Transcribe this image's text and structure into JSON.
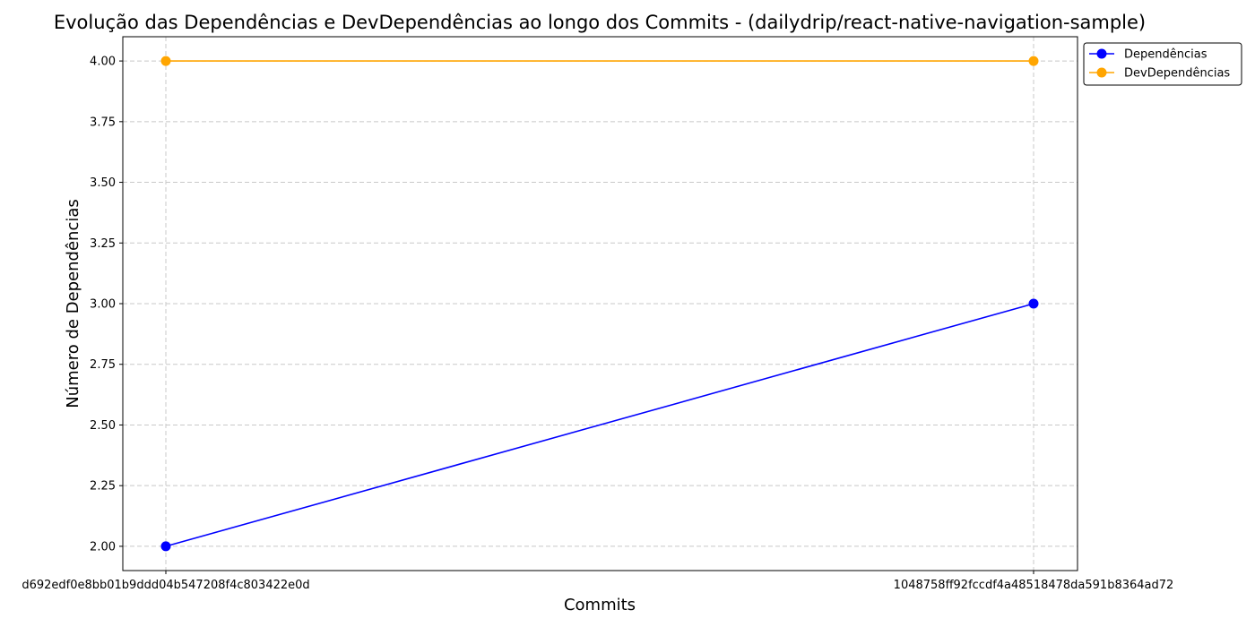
{
  "chart_data": {
    "type": "line",
    "title": "Evolução das Dependências e DevDependências ao longo dos Commits - (dailydrip/react-native-navigation-sample)",
    "xlabel": "Commits",
    "ylabel": "Número de Dependências",
    "categories": [
      "d692edf0e8bb01b9ddd04b547208f4c803422e0d",
      "1048758ff92fccdf4a48518478da591b8364ad72"
    ],
    "series": [
      {
        "name": "Dependências",
        "values": [
          2,
          3
        ],
        "color": "#0000ff"
      },
      {
        "name": "DevDependências",
        "values": [
          4,
          4
        ],
        "color": "#ffa500"
      }
    ],
    "ylim": [
      1.9,
      4.1
    ],
    "yticks": [
      "2.00",
      "2.25",
      "2.50",
      "2.75",
      "3.00",
      "3.25",
      "3.50",
      "3.75",
      "4.00"
    ],
    "grid": true,
    "legend": "top-right, outside plot"
  }
}
